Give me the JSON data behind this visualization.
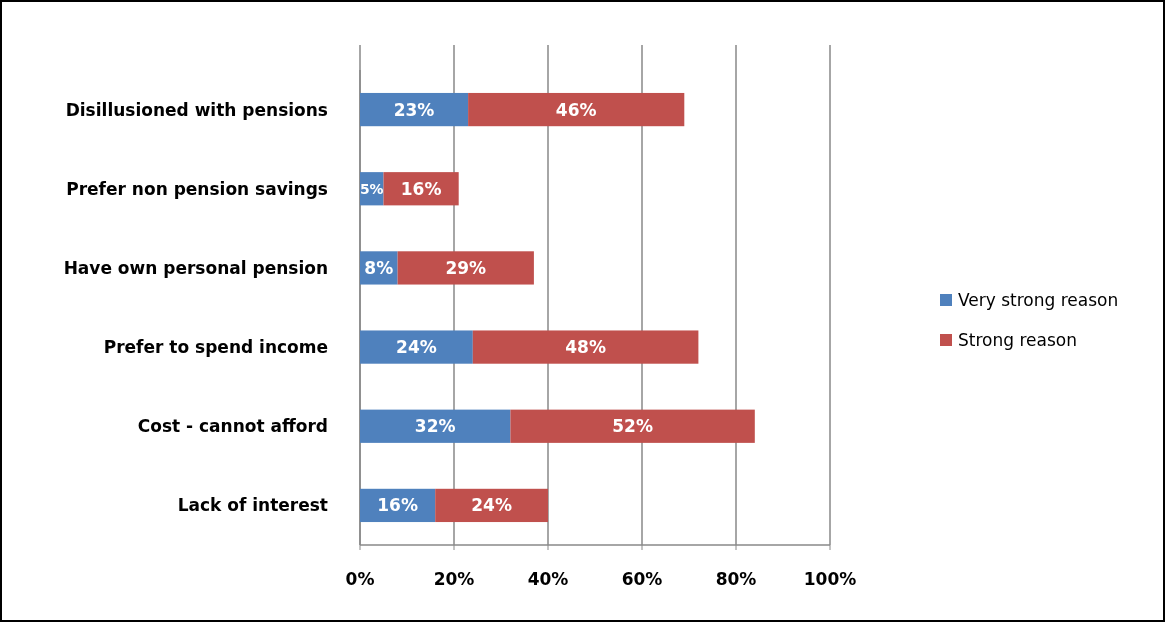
{
  "chart_data": {
    "type": "bar",
    "orientation": "horizontal",
    "stacked": true,
    "categories": [
      "Disillusioned with pensions",
      "Prefer non pension savings",
      "Have own personal pension",
      "Prefer to spend income",
      "Cost - cannot afford",
      "Lack of interest"
    ],
    "series": [
      {
        "name": "Very strong reason",
        "color": "#4f81bd",
        "values": [
          23,
          5,
          8,
          24,
          32,
          16
        ],
        "value_labels": [
          "23%",
          "5%",
          "8%",
          "24%",
          "32%",
          "16%"
        ]
      },
      {
        "name": "Strong reason",
        "color": "#c0504d",
        "values": [
          46,
          16,
          29,
          48,
          52,
          24
        ],
        "value_labels": [
          "46%",
          "16%",
          "29%",
          "48%",
          "52%",
          "24%"
        ]
      }
    ],
    "xlim": [
      0,
      100
    ],
    "xticks": [
      {
        "value": 0,
        "label": "0%"
      },
      {
        "value": 20,
        "label": "20%"
      },
      {
        "value": 40,
        "label": "40%"
      },
      {
        "value": 60,
        "label": "60%"
      },
      {
        "value": 80,
        "label": "80%"
      },
      {
        "value": 100,
        "label": "100%"
      }
    ],
    "grid": "x",
    "legend": "right"
  }
}
